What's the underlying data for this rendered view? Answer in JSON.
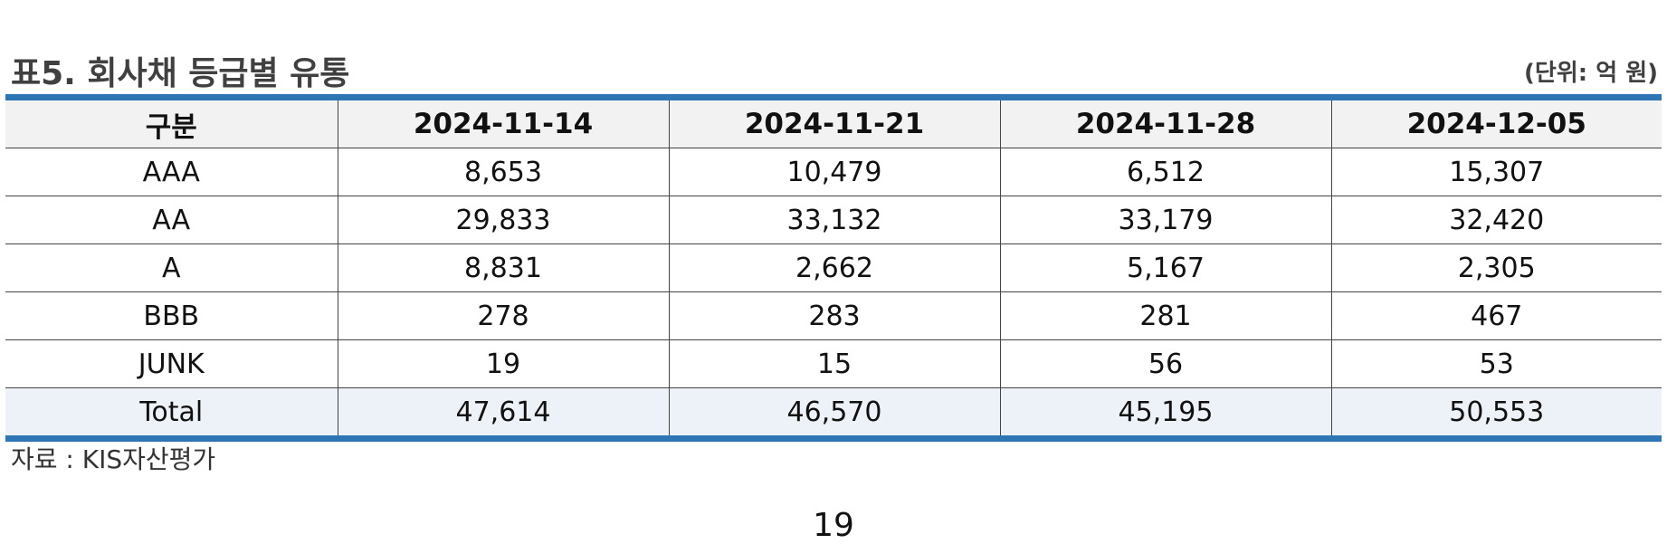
{
  "table": {
    "title": "표5. 회사채 등급별 유통",
    "unit": "(단위: 억 원)",
    "headers": [
      "구분",
      "2024-11-14",
      "2024-11-21",
      "2024-11-28",
      "2024-12-05"
    ],
    "rows": [
      [
        "AAA",
        "8,653",
        "10,479",
        "6,512",
        "15,307"
      ],
      [
        "AA",
        "29,833",
        "33,132",
        "33,179",
        "32,420"
      ],
      [
        "A",
        "8,831",
        "2,662",
        "5,167",
        "2,305"
      ],
      [
        "BBB",
        "278",
        "283",
        "281",
        "467"
      ],
      [
        "JUNK",
        "19",
        "15",
        "56",
        "53"
      ],
      [
        "Total",
        "47,614",
        "46,570",
        "45,195",
        "50,553"
      ]
    ],
    "source": "자료 : KIS자산평가"
  },
  "page": {
    "number": "19"
  },
  "colors": {
    "rule": "#2e75b6",
    "header_bg": "#f2f2f2",
    "total_bg": "#edf2f9"
  }
}
